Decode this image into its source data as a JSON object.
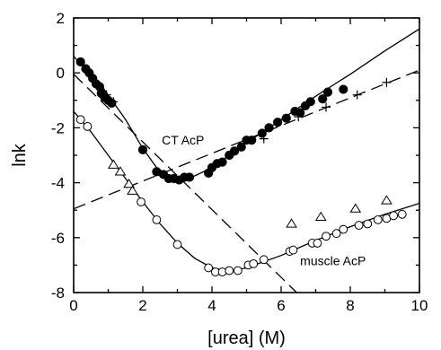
{
  "chart_data": {
    "type": "scatter",
    "title": "",
    "xlabel": "[urea] (M)",
    "ylabel": "lnk",
    "xlim": [
      0,
      10
    ],
    "ylim": [
      -8,
      2
    ],
    "xticks": [
      0,
      2,
      4,
      6,
      8,
      10
    ],
    "yticks": [
      2,
      0,
      -2,
      -4,
      -6,
      -8
    ],
    "grid": false,
    "annotations": [
      {
        "text": "CT AcP",
        "x": 2.55,
        "y": -2.6
      },
      {
        "text": "muscle AcP",
        "x": 6.55,
        "y": -7.0
      }
    ],
    "series": [
      {
        "marker": "filled-circle",
        "points": [
          [
            0.2,
            0.4
          ],
          [
            0.35,
            0.15
          ],
          [
            0.45,
            0.0
          ],
          [
            0.55,
            -0.2
          ],
          [
            0.65,
            -0.4
          ],
          [
            0.75,
            -0.5
          ],
          [
            0.8,
            -0.75
          ],
          [
            0.9,
            -0.9
          ],
          [
            1.0,
            -1.0
          ],
          [
            1.1,
            -1.1
          ],
          [
            2.0,
            -2.8
          ],
          [
            2.4,
            -3.6
          ],
          [
            2.6,
            -3.7
          ],
          [
            2.75,
            -3.85
          ],
          [
            2.9,
            -3.85
          ],
          [
            3.05,
            -3.9
          ],
          [
            3.2,
            -3.8
          ],
          [
            3.35,
            -3.8
          ],
          [
            3.9,
            -3.65
          ],
          [
            4.0,
            -3.45
          ],
          [
            4.15,
            -3.3
          ],
          [
            4.3,
            -3.25
          ],
          [
            4.5,
            -3.0
          ],
          [
            4.65,
            -2.85
          ],
          [
            4.85,
            -2.7
          ],
          [
            5.0,
            -2.45
          ],
          [
            5.15,
            -2.45
          ],
          [
            5.45,
            -2.2
          ],
          [
            5.65,
            -2.0
          ],
          [
            5.9,
            -1.8
          ],
          [
            6.15,
            -1.65
          ],
          [
            6.4,
            -1.4
          ],
          [
            6.55,
            -1.45
          ],
          [
            6.7,
            -1.2
          ],
          [
            6.85,
            -1.05
          ],
          [
            7.2,
            -0.95
          ],
          [
            7.35,
            -0.7
          ],
          [
            7.8,
            -0.6
          ]
        ]
      },
      {
        "marker": "open-circle",
        "points": [
          [
            0.2,
            -1.7
          ],
          [
            0.4,
            -1.95
          ],
          [
            1.95,
            -4.7
          ],
          [
            2.4,
            -5.35
          ],
          [
            3.0,
            -6.25
          ],
          [
            3.9,
            -7.1
          ],
          [
            4.1,
            -7.25
          ],
          [
            4.3,
            -7.25
          ],
          [
            4.5,
            -7.2
          ],
          [
            4.75,
            -7.2
          ],
          [
            5.05,
            -7.0
          ],
          [
            5.2,
            -6.95
          ],
          [
            5.5,
            -6.8
          ],
          [
            6.25,
            -6.5
          ],
          [
            6.35,
            -6.45
          ],
          [
            6.9,
            -6.2
          ],
          [
            7.05,
            -6.2
          ],
          [
            7.3,
            -5.95
          ],
          [
            7.6,
            -5.85
          ],
          [
            7.8,
            -5.7
          ],
          [
            8.25,
            -5.55
          ],
          [
            8.5,
            -5.5
          ],
          [
            8.8,
            -5.35
          ],
          [
            9.05,
            -5.3
          ],
          [
            9.25,
            -5.2
          ],
          [
            9.5,
            -5.15
          ]
        ]
      },
      {
        "marker": "open-triangle",
        "points": [
          [
            1.15,
            -3.35
          ],
          [
            1.35,
            -3.6
          ],
          [
            1.6,
            -4.05
          ],
          [
            1.7,
            -4.3
          ],
          [
            6.3,
            -5.5
          ],
          [
            7.15,
            -5.25
          ],
          [
            8.15,
            -4.95
          ],
          [
            9.05,
            -4.65
          ]
        ]
      },
      {
        "marker": "plus",
        "points": [
          [
            0.7,
            -0.5
          ],
          [
            0.95,
            -0.8
          ],
          [
            1.15,
            -1.05
          ],
          [
            5.5,
            -2.4
          ],
          [
            6.5,
            -1.6
          ],
          [
            7.3,
            -1.25
          ],
          [
            8.2,
            -0.8
          ],
          [
            9.05,
            -0.35
          ]
        ]
      }
    ],
    "fit_lines": [
      {
        "style": "solid",
        "points": [
          [
            0,
            0.6
          ],
          [
            0.8,
            -0.45
          ],
          [
            1.5,
            -1.7
          ],
          [
            2.0,
            -2.75
          ],
          [
            2.4,
            -3.45
          ],
          [
            2.75,
            -3.75
          ],
          [
            3.1,
            -3.82
          ],
          [
            3.5,
            -3.75
          ],
          [
            4.0,
            -3.45
          ],
          [
            5.0,
            -2.55
          ],
          [
            6.0,
            -1.7
          ],
          [
            7.0,
            -0.85
          ],
          [
            8.0,
            -0.05
          ],
          [
            9.0,
            0.8
          ],
          [
            10.0,
            1.6
          ]
        ]
      },
      {
        "style": "solid",
        "points": [
          [
            0,
            -1.4
          ],
          [
            0.5,
            -2.15
          ],
          [
            1.0,
            -3.0
          ],
          [
            1.5,
            -3.85
          ],
          [
            2.0,
            -4.7
          ],
          [
            2.5,
            -5.5
          ],
          [
            3.0,
            -6.2
          ],
          [
            3.5,
            -6.75
          ],
          [
            4.0,
            -7.1
          ],
          [
            4.5,
            -7.22
          ],
          [
            5.0,
            -7.1
          ],
          [
            6.0,
            -6.65
          ],
          [
            7.0,
            -6.1
          ],
          [
            8.0,
            -5.6
          ],
          [
            9.0,
            -5.15
          ],
          [
            10.0,
            -4.75
          ]
        ]
      },
      {
        "style": "dashed",
        "points": [
          [
            0,
            -0.05
          ],
          [
            6.45,
            -8.0
          ]
        ]
      },
      {
        "style": "dashed",
        "points": [
          [
            0,
            -4.95
          ],
          [
            10,
            0.1
          ]
        ]
      }
    ]
  }
}
